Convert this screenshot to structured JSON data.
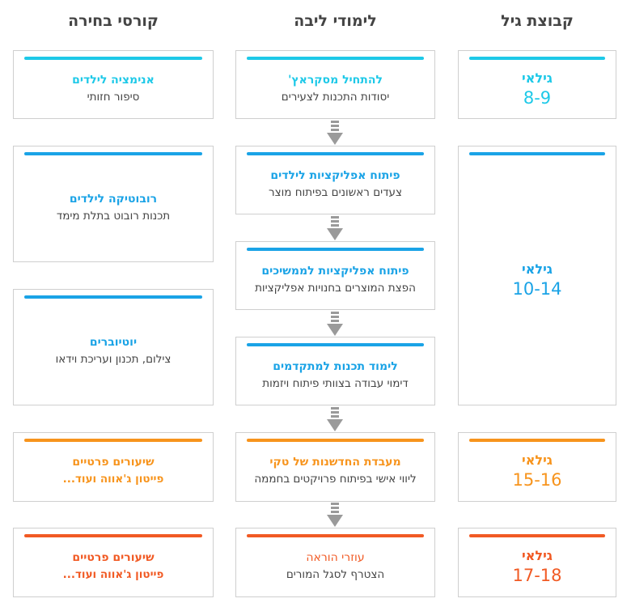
{
  "headers": {
    "electives": "קורסי בחירה",
    "core": "לימודי ליבה",
    "age_group": "קבוצת גיל"
  },
  "colors": {
    "cyan": "#1ec9e8",
    "blue": "#1aa3e6",
    "orange": "#f7941d",
    "red": "#f15a24",
    "arrow": "#9a9a9a"
  },
  "age_groups": [
    {
      "label": "גילאי",
      "range": "8-9",
      "color": "#1ec9e8"
    },
    {
      "label": "גילאי",
      "range": "10-14",
      "color": "#1aa3e6"
    },
    {
      "label": "גילאי",
      "range": "15-16",
      "color": "#f7941d"
    },
    {
      "label": "גילאי",
      "range": "17-18",
      "color": "#f15a24"
    }
  ],
  "core": [
    {
      "title": "להתחיל מסקראץ'",
      "subtitle": "יסודות התכנות לצעירים",
      "color": "#1ec9e8"
    },
    {
      "title": "פיתוח אפליקציות לילדים",
      "subtitle": "צעדים ראשונים בפיתוח מוצר",
      "color": "#1aa3e6"
    },
    {
      "title": "פיתוח אפליקציות לממשיכים",
      "subtitle": "הפצת המוצרים בחנויות אפליקציות",
      "color": "#1aa3e6"
    },
    {
      "title": "לימוד תכנות למתקדמים",
      "subtitle": "דימוי עבודה בצוותי פיתוח ויזמות",
      "color": "#1aa3e6"
    },
    {
      "title": "מעבדת החדשנות של טקי",
      "subtitle": "ליווי אישי בפיתוח פרויקטים בחממה",
      "color": "#f7941d"
    },
    {
      "title": "עוזרי הוראה",
      "subtitle": "הצטרף לסגל המורים",
      "color": "#f15a24"
    }
  ],
  "electives": [
    {
      "title": "אנימציה לילדים",
      "subtitle": "סיפור חזותי",
      "color": "#1ec9e8"
    },
    {
      "title": "רובוטיקה לילדים",
      "subtitle": "תכנות רובוט בתלת מימד",
      "color": "#1aa3e6"
    },
    {
      "title": "יוטיוברים",
      "subtitle": "צילום, תכנון ועריכת וידאו",
      "color": "#1aa3e6"
    },
    {
      "title": "שיעורים פרטיים",
      "subtitle": "פייטון ג'אווה ועוד...",
      "color": "#f7941d"
    },
    {
      "title": "שיעורים פרטיים",
      "subtitle": "פייטון ג'אווה ועוד...",
      "color": "#f15a24"
    }
  ]
}
